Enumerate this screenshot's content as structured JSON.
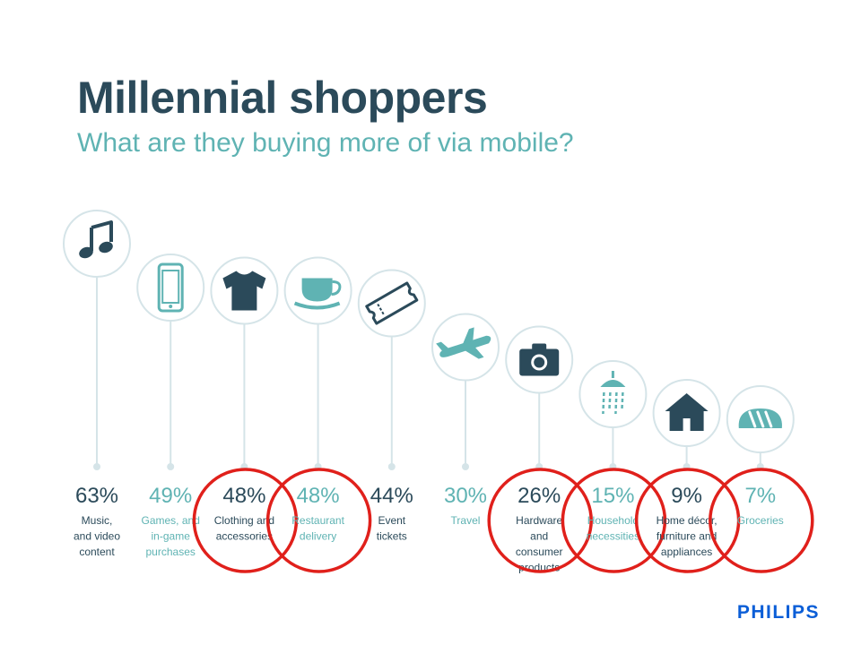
{
  "title": "Millennial shoppers",
  "subtitle": "What are they buying more of via mobile?",
  "brand": "PHILIPS",
  "colors": {
    "dark": "#2b4a5a",
    "teal": "#5fb3b3",
    "line": "#d5e4e8",
    "highlight": "#e0201b"
  },
  "chart_data": {
    "type": "bar",
    "title": "Millennial shoppers",
    "subtitle": "What are they buying more of via mobile?",
    "categories": [
      "Music, and video content",
      "Games, and in-game purchases",
      "Clothing and accessories",
      "Restaurant delivery",
      "Event tickets",
      "Travel",
      "Hardware and consumer products",
      "Household necessities",
      "Home décor, furniture and appliances",
      "Groceries"
    ],
    "values": [
      63,
      49,
      48,
      48,
      44,
      30,
      26,
      15,
      9,
      7
    ],
    "value_labels": [
      "63%",
      "49%",
      "48%",
      "48%",
      "44%",
      "30%",
      "26%",
      "15%",
      "9%",
      "7%"
    ],
    "label_lines": [
      [
        "Music,",
        "and video",
        "content"
      ],
      [
        "Games, and",
        "in-game",
        "purchases"
      ],
      [
        "Clothing and",
        "accessories"
      ],
      [
        "Restaurant",
        "delivery"
      ],
      [
        "Event",
        "tickets"
      ],
      [
        "Travel"
      ],
      [
        "Hardware",
        "and",
        "consumer",
        "products"
      ],
      [
        "Household",
        "necessities"
      ],
      [
        "Home décor,",
        "furniture and",
        "appliances"
      ],
      [
        "Groceries"
      ]
    ],
    "icons": [
      "music-note-icon",
      "smartphone-icon",
      "tshirt-icon",
      "coffee-cup-icon",
      "ticket-icon",
      "airplane-icon",
      "camera-icon",
      "shower-icon",
      "house-icon",
      "bread-icon"
    ],
    "tones": [
      "dark",
      "teal",
      "dark",
      "teal",
      "dark",
      "teal",
      "dark",
      "teal",
      "dark",
      "teal"
    ],
    "highlighted": [
      false,
      false,
      true,
      true,
      false,
      false,
      true,
      true,
      true,
      true
    ]
  }
}
